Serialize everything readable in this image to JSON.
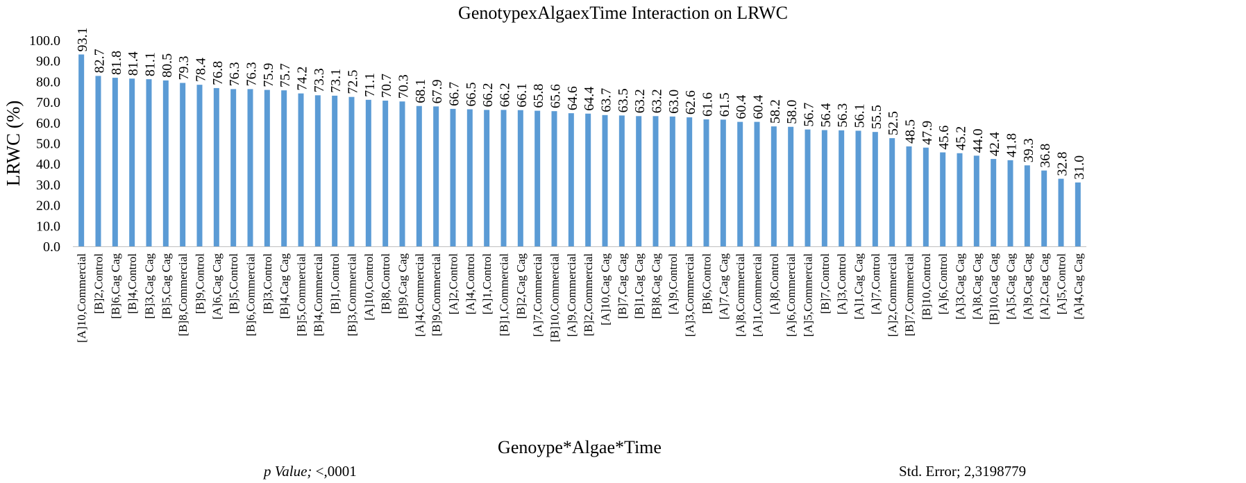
{
  "chart_data": {
    "type": "bar",
    "title": "GenotypexAlgaexTime Interaction on LRWC",
    "xlabel": "Genoype*Algae*Time",
    "ylabel": "LRWC (%)",
    "ylim": [
      0,
      100
    ],
    "yticks": [
      "0.0",
      "10.0",
      "20.0",
      "30.0",
      "40.0",
      "50.0",
      "60.0",
      "70.0",
      "80.0",
      "90.0",
      "100.0"
    ],
    "bar_color": "#5b9bd5",
    "grid": false,
    "legend": "none",
    "categories": [
      "[A]10,Commercial",
      "[B]2,Control",
      "[B]6,Cag Cag",
      "[B]4,Control",
      "[B]3,Cag Cag",
      "[B]5,Cag Cag",
      "[B]8,Commercial",
      "[B]9,Control",
      "[A]6,Cag Cag",
      "[B]5,Control",
      "[B]6,Commercial",
      "[B]3,Control",
      "[B]4,Cag Cag",
      "[B]5,Commercial",
      "[B]4,Commercial",
      "[B]1,Control",
      "[B]3,Commercial",
      "[A]10,Control",
      "[B]8,Control",
      "[B]9,Cag Cag",
      "[A]4,Commercial",
      "[B]9,Commercial",
      "[A]2,Control",
      "[A]4,Control",
      "[A]1,Control",
      "[B]1,Commercial",
      "[B]2,Cag Cag",
      "[A]7,Commercial",
      "[B]10,Commercial",
      "[A]9,Commercial",
      "[B]2,Commercial",
      "[A]10,Cag Cag",
      "[B]7,Cag Cag",
      "[B]1,Cag Cag",
      "[B]8,Cag Cag",
      "[A]9,Control",
      "[A]3,Commercial",
      "[B]6,Control",
      "[A]7,Cag Cag",
      "[A]8,Commercial",
      "[A]1,Commercial",
      "[A]8,Control",
      "[A]6,Commercial",
      "[A]5,Commercial",
      "[B]7,Control",
      "[A]3,Control",
      "[A]1,Cag Cag",
      "[A]7,Control",
      "[A]2,Commercial",
      "[B]7,Commercial",
      "[B]10,Control",
      "[A]6,Control",
      "[A]3,Cag Cag",
      "[A]8,Cag Cag",
      "[B]10,Cag Cag",
      "[A]5,Cag Cag",
      "[A]9,Cag Cag",
      "[A]2,Cag Cag",
      "[A]5,Control",
      "[A]4,Cag Cag"
    ],
    "values": [
      93.1,
      82.7,
      81.8,
      81.4,
      81.1,
      80.5,
      79.3,
      78.4,
      76.8,
      76.3,
      76.3,
      75.9,
      75.7,
      74.2,
      73.3,
      73.1,
      72.5,
      71.1,
      70.7,
      70.3,
      68.1,
      67.9,
      66.7,
      66.5,
      66.2,
      66.2,
      66.1,
      65.8,
      65.6,
      64.6,
      64.4,
      63.7,
      63.5,
      63.2,
      63.2,
      63.0,
      62.6,
      61.6,
      61.5,
      60.4,
      60.4,
      58.2,
      58.0,
      56.7,
      56.4,
      56.3,
      56.1,
      55.5,
      52.5,
      48.5,
      47.9,
      45.6,
      45.2,
      44.0,
      42.4,
      41.8,
      39.3,
      36.8,
      32.8,
      31.0
    ]
  },
  "footer": {
    "p_value_label": "p Value;",
    "p_value": " <,0001",
    "std_error": "Std. Error; 2,3198779"
  }
}
